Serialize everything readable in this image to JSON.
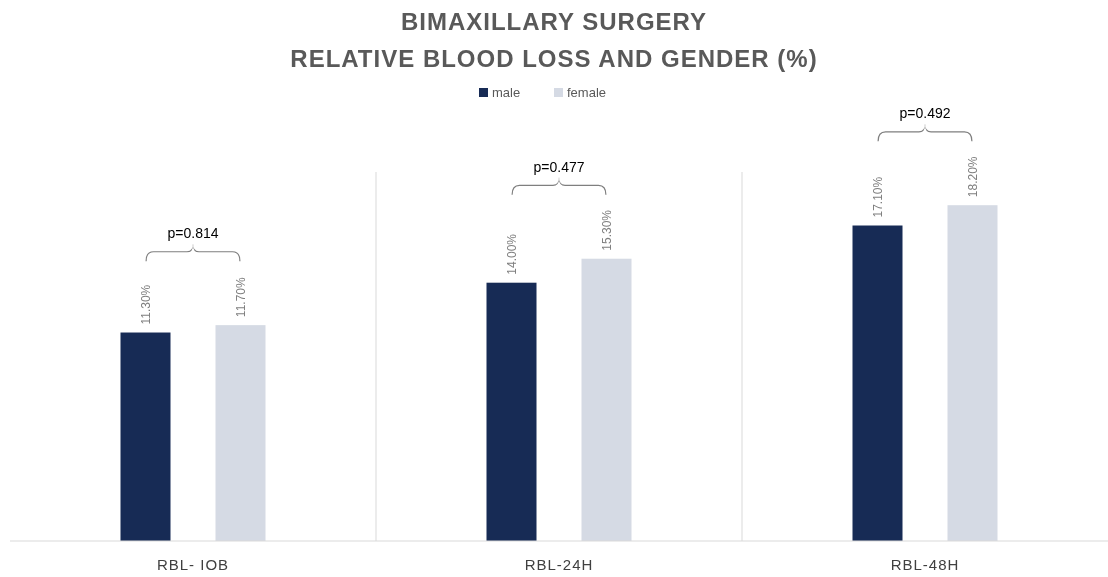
{
  "chart_data": {
    "type": "bar",
    "title": "BIMAXILLARY SURGERY",
    "subtitle": "RELATIVE BLOOD LOSS AND GENDER (%)",
    "categories": [
      "RBL- IOB",
      "RBL-24H",
      "RBL-48H"
    ],
    "series": [
      {
        "name": "male",
        "color": "#172b55",
        "values": [
          11.3,
          14.0,
          17.1
        ],
        "value_labels": [
          "11.30%",
          "14.00%",
          "17.10%"
        ]
      },
      {
        "name": "female",
        "color": "#d5dae4",
        "values": [
          11.7,
          15.3,
          18.2
        ],
        "value_labels": [
          "11.70%",
          "15.30%",
          "18.20%"
        ]
      }
    ],
    "ylim": [
      0,
      20
    ],
    "tick_labels": "x",
    "grid": "x",
    "legend": "top",
    "annotations": [
      "p=0.814",
      "p=0.477",
      "p=0.492"
    ]
  }
}
